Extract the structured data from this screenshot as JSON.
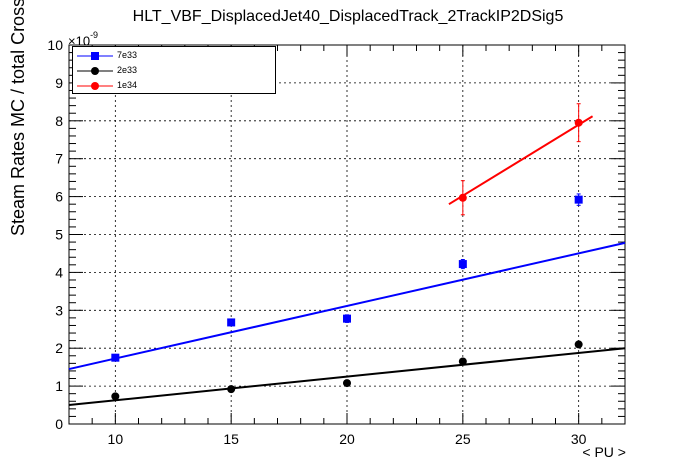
{
  "chart_data": {
    "type": "scatter",
    "title": "HLT_VBF_DisplacedJet40_DisplacedTrack_2TrackIP2DSig5",
    "xlabel": "< PU >",
    "ylabel": "Steam Rates MC / total CrossSection (Hz/pb)",
    "y_exponent_base": "×10",
    "y_exponent_power": "-9",
    "xlim": [
      8,
      32
    ],
    "ylim": [
      0,
      10
    ],
    "x_ticks": [
      10,
      15,
      20,
      25,
      30
    ],
    "y_ticks": [
      0,
      1,
      2,
      3,
      4,
      5,
      6,
      7,
      8,
      9,
      10
    ],
    "grid": true,
    "legend_position": "top-left",
    "series": [
      {
        "name": "7e33",
        "color": "#0000ff",
        "marker": "square",
        "x": [
          10,
          15,
          20,
          25,
          30
        ],
        "y": [
          1.75,
          2.68,
          2.78,
          4.22,
          5.92
        ],
        "y_err": [
          0.06,
          0.08,
          0.1,
          0.12,
          0.15
        ],
        "fit": {
          "x_range": [
            8,
            32
          ],
          "y_range": [
            1.45,
            4.78
          ]
        }
      },
      {
        "name": "2e33",
        "color": "#000000",
        "marker": "circle",
        "x": [
          10,
          15,
          20,
          25,
          30
        ],
        "y": [
          0.73,
          0.92,
          1.08,
          1.65,
          2.1
        ],
        "y_err": [
          0.03,
          0.03,
          0.04,
          0.05,
          0.06
        ],
        "fit": {
          "x_range": [
            8,
            32
          ],
          "y_range": [
            0.5,
            2.0
          ]
        }
      },
      {
        "name": "1e34",
        "color": "#ff0000",
        "marker": "circle",
        "x": [
          25,
          30
        ],
        "y": [
          5.97,
          7.95
        ],
        "y_err": [
          0.45,
          0.5
        ],
        "fit": {
          "x_range": [
            24.4,
            30.6
          ],
          "y_range": [
            5.8,
            8.12
          ]
        }
      }
    ]
  }
}
